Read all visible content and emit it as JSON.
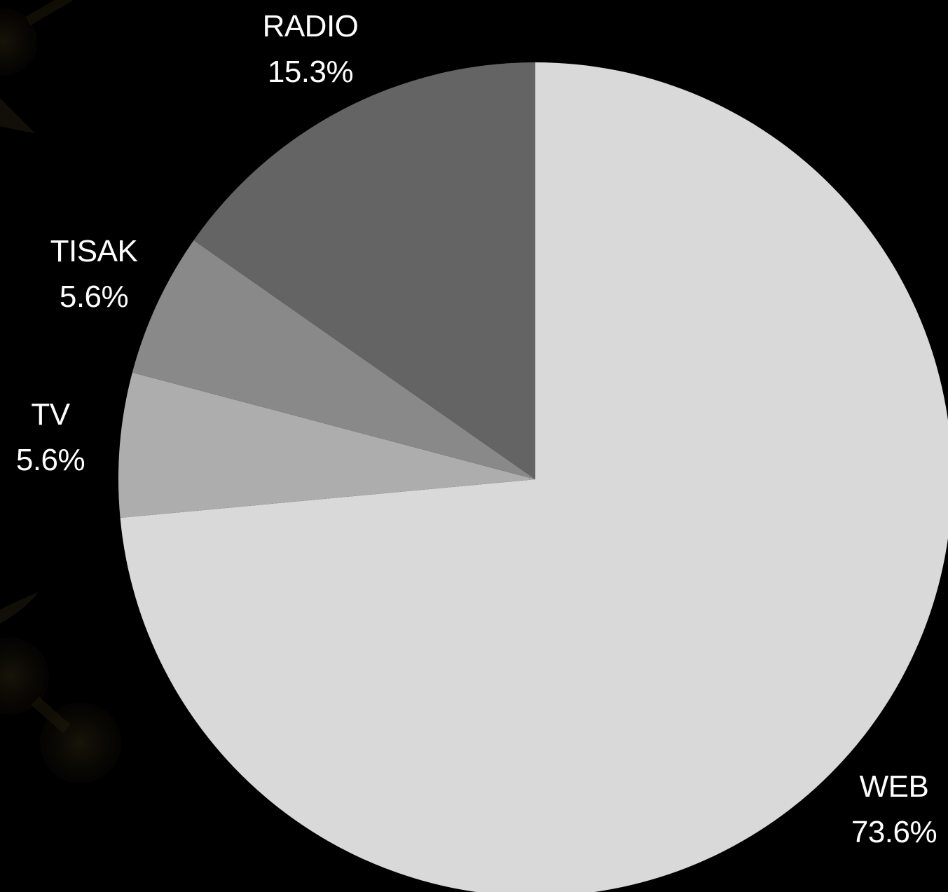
{
  "chart_data": {
    "type": "pie",
    "title": "",
    "start_angle_deg": 0,
    "direction": "clockwise",
    "slices": [
      {
        "label": "WEB",
        "value": 73.6,
        "value_label": "73.6%",
        "color": "#d9d9d9"
      },
      {
        "label": "TV",
        "value": 5.6,
        "value_label": "5.6%",
        "color": "#adadad"
      },
      {
        "label": "TISAK",
        "value": 5.6,
        "value_label": "5.6%",
        "color": "#898989"
      },
      {
        "label": "RADIO",
        "value": 15.3,
        "value_label": "15.3%",
        "color": "#646464"
      }
    ],
    "background_color": "#000000",
    "label_color": "#ffffff"
  }
}
